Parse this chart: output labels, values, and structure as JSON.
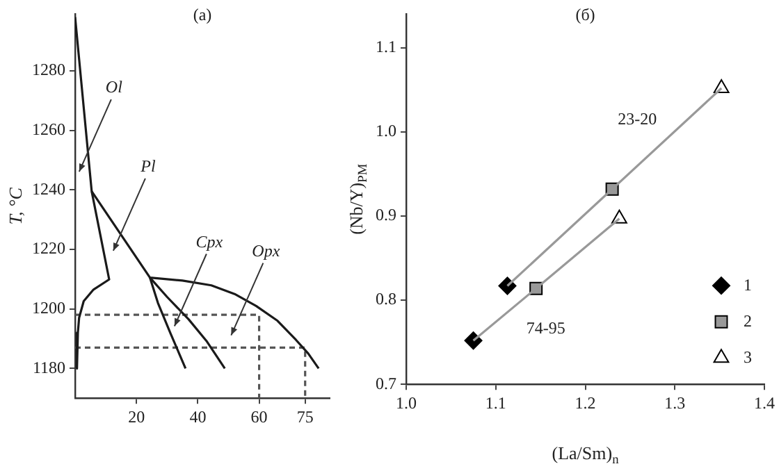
{
  "chart_data": [
    {
      "type": "line",
      "title": "(a)",
      "ylabel": "T, °C",
      "xlim": [
        0,
        83
      ],
      "ylim": [
        1170,
        1299
      ],
      "xticks": [
        20,
        40,
        60,
        75
      ],
      "yticks": [
        1180,
        1200,
        1220,
        1240,
        1260,
        1280
      ],
      "series": [
        {
          "color": "#1a1a1a",
          "x": [
            0,
            5.4,
            11.1,
            6,
            2.8,
            1.3,
            0.9,
            0.6
          ],
          "values": [
            1298,
            1239.5,
            1209.9,
            1206.5,
            1202.6,
            1197,
            1192,
            1180
          ]
        },
        {
          "color": "#1a1a1a",
          "x": [
            24.4,
            27,
            31,
            36
          ],
          "values": [
            1210.5,
            1202,
            1192,
            1180
          ]
        },
        {
          "color": "#1a1a1a",
          "x": [
            24.4,
            30,
            37,
            43,
            48.8
          ],
          "values": [
            1210.5,
            1204,
            1196.5,
            1189,
            1180
          ]
        },
        {
          "color": "#1a1a1a",
          "x": [
            5.4,
            24.4,
            35,
            44.4,
            52,
            59,
            66,
            72,
            76,
            79.4
          ],
          "values": [
            1239.5,
            1210.5,
            1209.5,
            1207.9,
            1205,
            1201,
            1196,
            1189.6,
            1185,
            1180
          ]
        },
        {
          "color": "#555555",
          "line_style": "dashed",
          "x": [
            0,
            60,
            60
          ],
          "values": [
            1198,
            1198,
            1170
          ]
        },
        {
          "color": "#555555",
          "line_style": "dashed",
          "x": [
            0,
            75,
            75
          ],
          "values": [
            1187,
            1187,
            1170
          ]
        }
      ],
      "annotations": [
        "Ol",
        "Pl",
        {
          "text": "Cpx",
          "x": 32.4,
          "y": 1194.2
        },
        "Opx"
      ]
    },
    {
      "type": "scatter",
      "title": "(б)",
      "xlabel": "(La/Sm)$_{n}$",
      "ylabel": "(Nb/Y)$_{PM}$",
      "xlim": [
        1.0,
        1.4
      ],
      "ylim": [
        0.7,
        1.14
      ],
      "xticks": [
        {
          "value": 1,
          "label": "1.0"
        },
        1.1,
        1.2,
        1.3,
        1.4
      ],
      "yticks": [
        0.7,
        0.8,
        0.9,
        {
          "value": 1,
          "label": "1.0"
        },
        1.1
      ],
      "legend": "bottom right",
      "series": [
        {
          "type": "line",
          "color": "#999999",
          "x": [
            1.113,
            1.23,
            1.352
          ],
          "values": [
            0.817,
            0.932,
            1.052
          ]
        },
        {
          "type": "line",
          "color": "#999999",
          "x": [
            1.075,
            1.145,
            1.238
          ],
          "values": [
            0.752,
            0.814,
            0.897
          ]
        },
        {
          "name": "1",
          "marker": "diamond",
          "color": "#000000",
          "x": [
            1.113,
            1.075
          ],
          "values": [
            0.817,
            0.752
          ]
        },
        {
          "name": "2",
          "marker": "square",
          "color": "#999999",
          "x": [
            1.23,
            1.145
          ],
          "values": [
            0.932,
            0.814
          ]
        },
        {
          "name": "3",
          "marker": "triangle",
          "color": "#ffffff",
          "x": [
            1.352,
            1.238
          ],
          "values": [
            1.052,
            0.897
          ]
        }
      ],
      "annotations": [
        "23-20",
        "74-95"
      ]
    }
  ]
}
